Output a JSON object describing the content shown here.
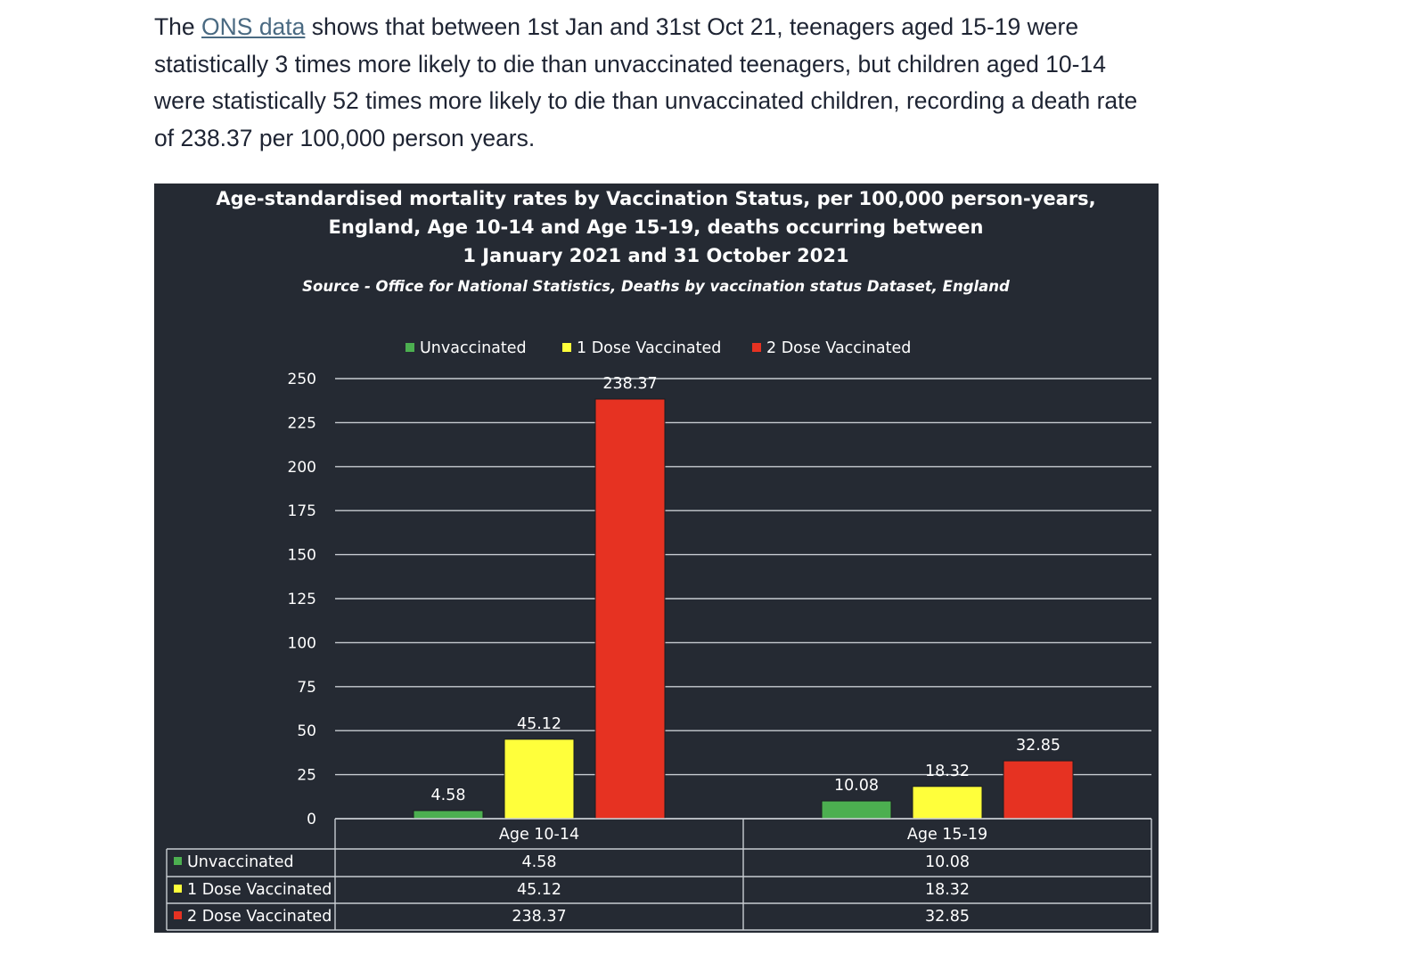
{
  "article": {
    "prefix": "The ",
    "link_text": "ONS data",
    "suffix": " shows that between 1st Jan and 31st Oct 21, teenagers aged 15-19 were statistically 3 times more likely to die than unvaccinated teenagers, but children aged 10-14 were statistically 52 times more likely to die than unvaccinated children, recording a death rate of 238.37 per 100,000 person years."
  },
  "colors": {
    "panel_bg": "#252a33",
    "text": "#ffffff",
    "grid": "#c8ccd2",
    "unvaccinated": "#4caf50",
    "one_dose": "#ffff3b",
    "two_dose": "#e63222"
  },
  "chart_data": {
    "type": "bar",
    "title_lines": [
      "Age-standardised mortality rates by Vaccination Status, per 100,000 person-years,",
      "England, Age 10-14 and Age 15-19, deaths occurring between",
      "1 January 2021 and 31 October 2021"
    ],
    "subtitle": "Source - Office for National Statistics, Deaths by vaccination status Dataset, England",
    "categories": [
      "Age 10-14",
      "Age 15-19"
    ],
    "series": [
      {
        "name": "Unvaccinated",
        "values": [
          4.58,
          10.08
        ]
      },
      {
        "name": "1 Dose Vaccinated",
        "values": [
          45.12,
          18.32
        ]
      },
      {
        "name": "2 Dose Vaccinated",
        "values": [
          238.37,
          32.85
        ]
      }
    ],
    "value_labels": [
      [
        "4.58",
        "10.08"
      ],
      [
        "45.12",
        "18.32"
      ],
      [
        "238.37",
        "32.85"
      ]
    ],
    "ylim": [
      0,
      250
    ],
    "yticks": [
      0,
      25,
      50,
      75,
      100,
      125,
      150,
      175,
      200,
      225,
      250
    ],
    "grid": true,
    "legend_position": "top",
    "data_table": true
  }
}
